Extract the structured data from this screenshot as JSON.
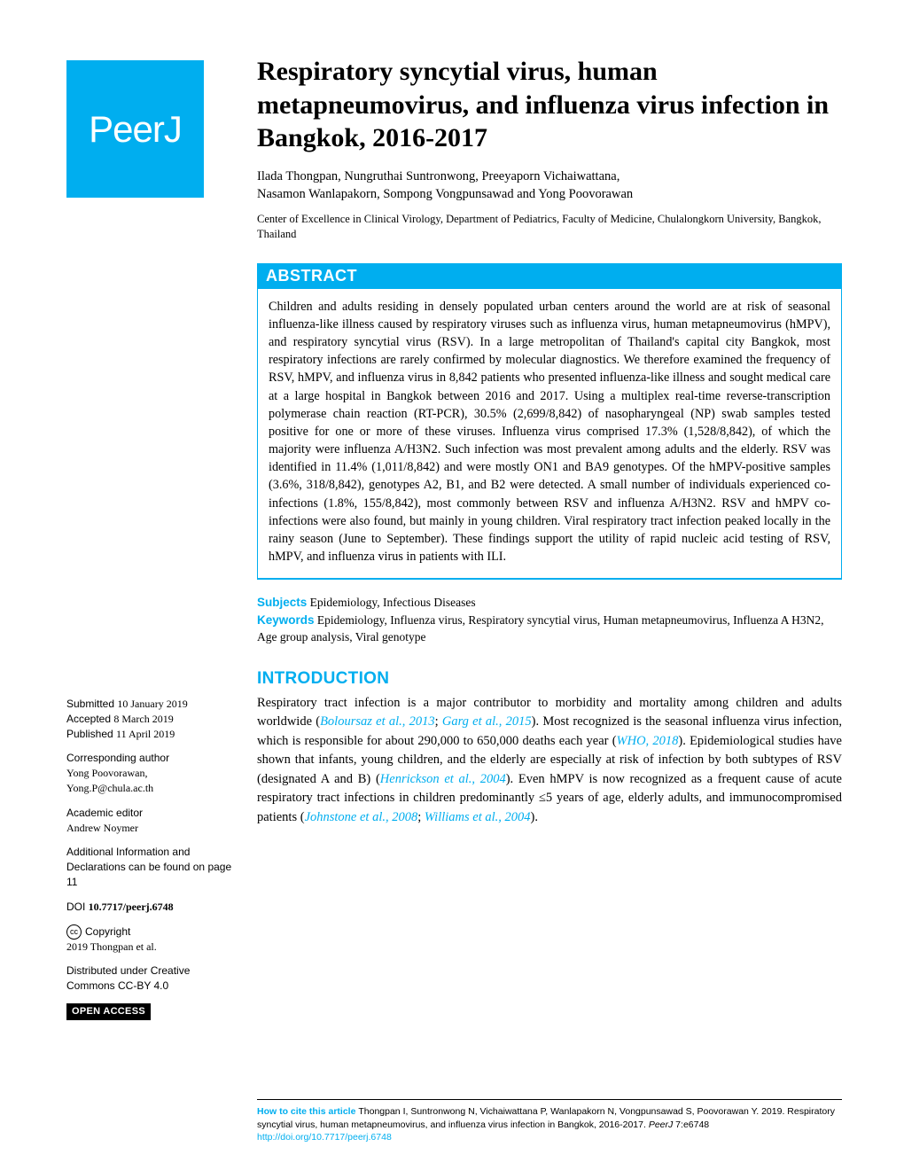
{
  "brand": {
    "name": "PeerJ",
    "logo_bg": "#00aeef",
    "logo_fg": "#ffffff"
  },
  "title": "Respiratory syncytial virus, human metapneumovirus, and influenza virus infection in Bangkok, 2016-2017",
  "authors_line1": "Ilada Thongpan,  Nungruthai Suntronwong,  Preeyaporn Vichaiwattana,",
  "authors_line2": "Nasamon Wanlapakorn,  Sompong Vongpunsawad and  Yong Poovorawan",
  "affiliation": "Center of Excellence in Clinical Virology, Department of Pediatrics, Faculty of Medicine, Chulalongkorn University, Bangkok, Thailand",
  "abstract": {
    "heading": "ABSTRACT",
    "text": "Children and adults residing in densely populated urban centers around the world are at risk of seasonal influenza-like illness caused by respiratory viruses such as influenza virus, human metapneumovirus (hMPV), and respiratory syncytial virus (RSV). In a large metropolitan of Thailand's capital city Bangkok, most respiratory infections are rarely confirmed by molecular diagnostics. We therefore examined the frequency of RSV, hMPV, and influenza virus in 8,842 patients who presented influenza-like illness and sought medical care at a large hospital in Bangkok between 2016 and 2017. Using a multiplex real-time reverse-transcription polymerase chain reaction (RT-PCR), 30.5% (2,699/8,842) of nasopharyngeal (NP) swab samples tested positive for one or more of these viruses. Influenza virus comprised 17.3% (1,528/8,842), of which the majority were influenza A/H3N2. Such infection was most prevalent among adults and the elderly. RSV was identified in 11.4% (1,011/8,842) and were mostly ON1 and BA9 genotypes. Of the hMPV-positive samples (3.6%, 318/8,842), genotypes A2, B1, and B2 were detected. A small number of individuals experienced co-infections (1.8%, 155/8,842), most commonly between RSV and influenza A/H3N2. RSV and hMPV co-infections were also found, but mainly in young children. Viral respiratory tract infection peaked locally in the rainy season (June to September). These findings support the utility of rapid nucleic acid testing of RSV, hMPV, and influenza virus in patients with ILI."
  },
  "subjects": {
    "label": "Subjects",
    "text": " Epidemiology, Infectious Diseases"
  },
  "keywords": {
    "label": "Keywords",
    "text": "  Epidemiology, Influenza virus, Respiratory syncytial virus, Human metapneumovirus, Influenza A H3N2, Age group analysis, Viral genotype"
  },
  "intro": {
    "heading": "INTRODUCTION",
    "pre1": "Respiratory tract infection is a major contributor to morbidity and mortality among children and adults worldwide (",
    "c1": "Boloursaz et al., 2013",
    "sep1": "; ",
    "c2": "Garg et al., 2015",
    "post1": "). Most recognized is the seasonal influenza virus infection, which is responsible for about 290,000 to 650,000 deaths each year (",
    "c3": "WHO, 2018",
    "post2": "). Epidemiological studies have shown that infants, young children, and the elderly are especially at risk of infection by both subtypes of RSV (designated A and B) (",
    "c4": "Henrickson et al., 2004",
    "post3": "). Even hMPV is now recognized as a frequent cause of acute respiratory tract infections in children predominantly ≤5 years of age, elderly adults, and immunocompromised patients (",
    "c5": "Johnstone et al., 2008",
    "sep2": "; ",
    "c6": "Williams et al., 2004",
    "post4": ")."
  },
  "sidebar": {
    "submitted_l": "Submitted ",
    "submitted_v": "10 January 2019",
    "accepted_l": "Accepted  ",
    "accepted_v": "8 March 2019",
    "published_l": "Published ",
    "published_v": "11 April 2019",
    "corr_l": "Corresponding author",
    "corr_name": "Yong Poovorawan,",
    "corr_email": "Yong.P@chula.ac.th",
    "ae_l": "Academic editor",
    "ae_name": "Andrew Noymer",
    "addl": "Additional Information and Declarations can be found on page 11",
    "doi_l": "DOI ",
    "doi_v": "10.7717/peerj.6748",
    "copy_l": "Copyright",
    "copy_v": "2019 Thongpan et al.",
    "dist": "Distributed under Creative Commons CC-BY 4.0",
    "oa": "OPEN ACCESS"
  },
  "citation": {
    "lead": "How to cite this article ",
    "text": "Thongpan I, Suntronwong N, Vichaiwattana P, Wanlapakorn N, Vongpunsawad S, Poovorawan Y. 2019. Respiratory syncytial virus, human metapneumovirus, and influenza virus infection in Bangkok, 2016-2017. ",
    "journal": "PeerJ",
    "vol": " 7:e6748 ",
    "doi": "http://doi.org/10.7717/peerj.6748"
  },
  "colors": {
    "accent": "#00aeef",
    "text": "#000000",
    "bg": "#ffffff"
  },
  "typography": {
    "title_size": 30,
    "body_size": 14.5,
    "abstract_size": 14.2,
    "sidebar_size": 12
  }
}
